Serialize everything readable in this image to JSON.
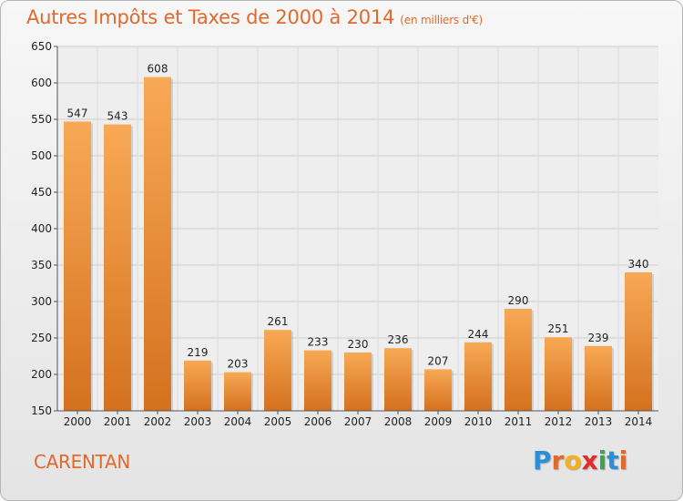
{
  "header": {
    "title": "Autres Impôts et Taxes de 2000 à 2014",
    "unit": "(en milliers d'€)"
  },
  "footer": {
    "place": "CARENTAN",
    "logo": "Proxiti"
  },
  "colors": {
    "accent": "#e0692c",
    "bar_light": "#f8a955",
    "bar_dark": "#d4711f",
    "grid": "#cfcfcf"
  },
  "chart_data": {
    "type": "bar",
    "categories": [
      "2000",
      "2001",
      "2002",
      "2003",
      "2004",
      "2005",
      "2006",
      "2007",
      "2008",
      "2009",
      "2010",
      "2011",
      "2012",
      "2013",
      "2014"
    ],
    "values": [
      547,
      543,
      608,
      219,
      203,
      261,
      233,
      230,
      236,
      207,
      244,
      290,
      251,
      239,
      340
    ],
    "ylim": [
      150,
      650
    ],
    "yticks": [
      150,
      200,
      250,
      300,
      350,
      400,
      450,
      500,
      550,
      600,
      650
    ],
    "grid": true,
    "xlabel": "",
    "ylabel": ""
  }
}
